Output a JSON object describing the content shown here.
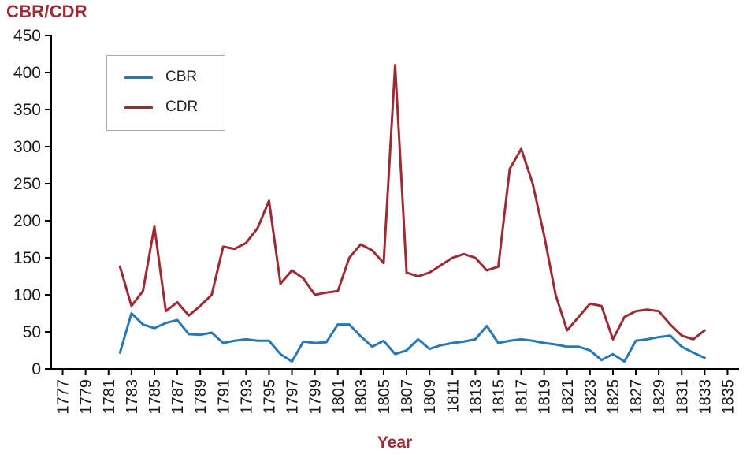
{
  "colors": {
    "cbr_line": "#2878b8",
    "cdr_line": "#9e2b33",
    "title_text": "#9e2b33",
    "axis": "#000000",
    "tick_text": "#1a1a1a"
  },
  "chart_data": {
    "type": "line",
    "title": "CBR/CDR",
    "xlabel": "Year",
    "ylabel": "",
    "grid": false,
    "legend_position": "top-left",
    "xlim": [
      1776,
      1836
    ],
    "ylim": [
      0,
      450
    ],
    "y_ticks": [
      0,
      50,
      100,
      150,
      200,
      250,
      300,
      350,
      400,
      450
    ],
    "x_ticks": [
      1777,
      1779,
      1781,
      1783,
      1785,
      1787,
      1789,
      1791,
      1793,
      1795,
      1797,
      1799,
      1801,
      1803,
      1805,
      1807,
      1809,
      1811,
      1813,
      1815,
      1817,
      1819,
      1821,
      1823,
      1825,
      1827,
      1829,
      1831,
      1833,
      1835
    ],
    "x": [
      1782,
      1783,
      1784,
      1785,
      1786,
      1787,
      1788,
      1789,
      1790,
      1791,
      1792,
      1793,
      1794,
      1795,
      1796,
      1797,
      1798,
      1799,
      1800,
      1801,
      1802,
      1803,
      1804,
      1805,
      1806,
      1807,
      1808,
      1809,
      1810,
      1811,
      1812,
      1813,
      1814,
      1815,
      1816,
      1817,
      1818,
      1819,
      1820,
      1821,
      1822,
      1823,
      1824,
      1825,
      1826,
      1827,
      1828,
      1829,
      1830,
      1831,
      1832,
      1833
    ],
    "series": [
      {
        "name": "CBR",
        "color": "#2878b8",
        "values": [
          22,
          75,
          60,
          55,
          62,
          66,
          47,
          46,
          49,
          35,
          38,
          40,
          38,
          38,
          20,
          10,
          37,
          35,
          36,
          60,
          60,
          44,
          30,
          38,
          20,
          25,
          40,
          27,
          32,
          35,
          37,
          40,
          58,
          35,
          38,
          40,
          38,
          35,
          33,
          30,
          30,
          25,
          12,
          20,
          10,
          38,
          40,
          43,
          45,
          30,
          22,
          15
        ]
      },
      {
        "name": "CDR",
        "color": "#9e2b33",
        "values": [
          138,
          85,
          105,
          192,
          78,
          90,
          72,
          85,
          100,
          165,
          162,
          170,
          190,
          227,
          115,
          133,
          122,
          100,
          103,
          105,
          150,
          168,
          160,
          143,
          410,
          130,
          125,
          130,
          140,
          150,
          155,
          150,
          133,
          138,
          270,
          297,
          250,
          180,
          100,
          52,
          70,
          88,
          85,
          40,
          70,
          78,
          80,
          78,
          60,
          45,
          40,
          52
        ]
      }
    ]
  }
}
